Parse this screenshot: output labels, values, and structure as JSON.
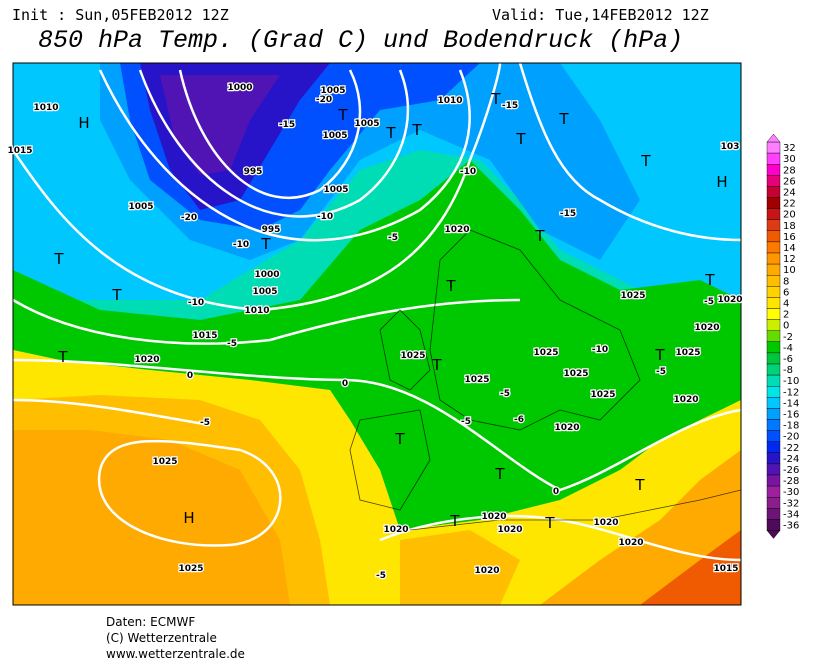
{
  "header": {
    "init": "Init : Sun,05FEB2012 12Z",
    "valid": "Valid: Tue,14FEB2012 12Z",
    "title": "850 hPa Temp. (Grad C) und Bodendruck (hPa)"
  },
  "colorbar": {
    "values": [
      32,
      30,
      28,
      26,
      24,
      22,
      20,
      18,
      16,
      14,
      12,
      10,
      8,
      6,
      4,
      2,
      0,
      -2,
      -4,
      -6,
      -8,
      -10,
      -12,
      -14,
      -16,
      -18,
      -20,
      -22,
      -24,
      -26,
      -28,
      -30,
      -32,
      -34,
      -36
    ],
    "colors": [
      "#ff80ff",
      "#ff40ff",
      "#ff00cc",
      "#e6007a",
      "#c80032",
      "#a00000",
      "#c81414",
      "#dc3c14",
      "#f05a00",
      "#ff7800",
      "#ff9600",
      "#ffaa00",
      "#ffbe00",
      "#ffd200",
      "#ffe600",
      "#ffff00",
      "#c8f000",
      "#64dc00",
      "#00c800",
      "#00c83c",
      "#00d278",
      "#00dcb4",
      "#00e6e6",
      "#00c8ff",
      "#00a0ff",
      "#0078ff",
      "#0050ff",
      "#0028f0",
      "#2814c8",
      "#5014b4",
      "#7814a0",
      "#a01ea0",
      "#8c1e8c",
      "#6e1478",
      "#500a5a"
    ]
  },
  "map_labels": [
    "H",
    "1010",
    "1015",
    "H",
    "103",
    "1000",
    "1005",
    "-20",
    "1010",
    "T",
    "-15",
    "T",
    "-15",
    "1005",
    "T",
    "1005",
    "T",
    "T",
    "T",
    "T",
    "995",
    "-10",
    "1005",
    "-20",
    "1005",
    "-10",
    "-15",
    "995",
    "-10",
    "T",
    "1020",
    "-5",
    "T",
    "1000",
    "T",
    "1005",
    "T",
    "-10",
    "1010",
    "T",
    "1025",
    "T",
    "-5",
    "1020",
    "1015",
    "-5",
    "1020",
    "1020",
    "T",
    "1025",
    "1025",
    "-10",
    "T",
    "1025",
    "0",
    "T",
    "1025",
    "1025",
    "-5",
    "0",
    "-5",
    "1025",
    "1020",
    "-5",
    "-5",
    "-6",
    "1020",
    "T",
    "1025",
    "T",
    "T",
    "H",
    "0",
    "1020",
    "T",
    "1020",
    "1020",
    "T",
    "1020",
    "1020",
    "1025",
    "1020",
    "-5",
    "1015"
  ],
  "footer": [
    "Daten: ECMWF",
    "(C) Wetterzentrale",
    "www.wetterzentrale.de"
  ]
}
